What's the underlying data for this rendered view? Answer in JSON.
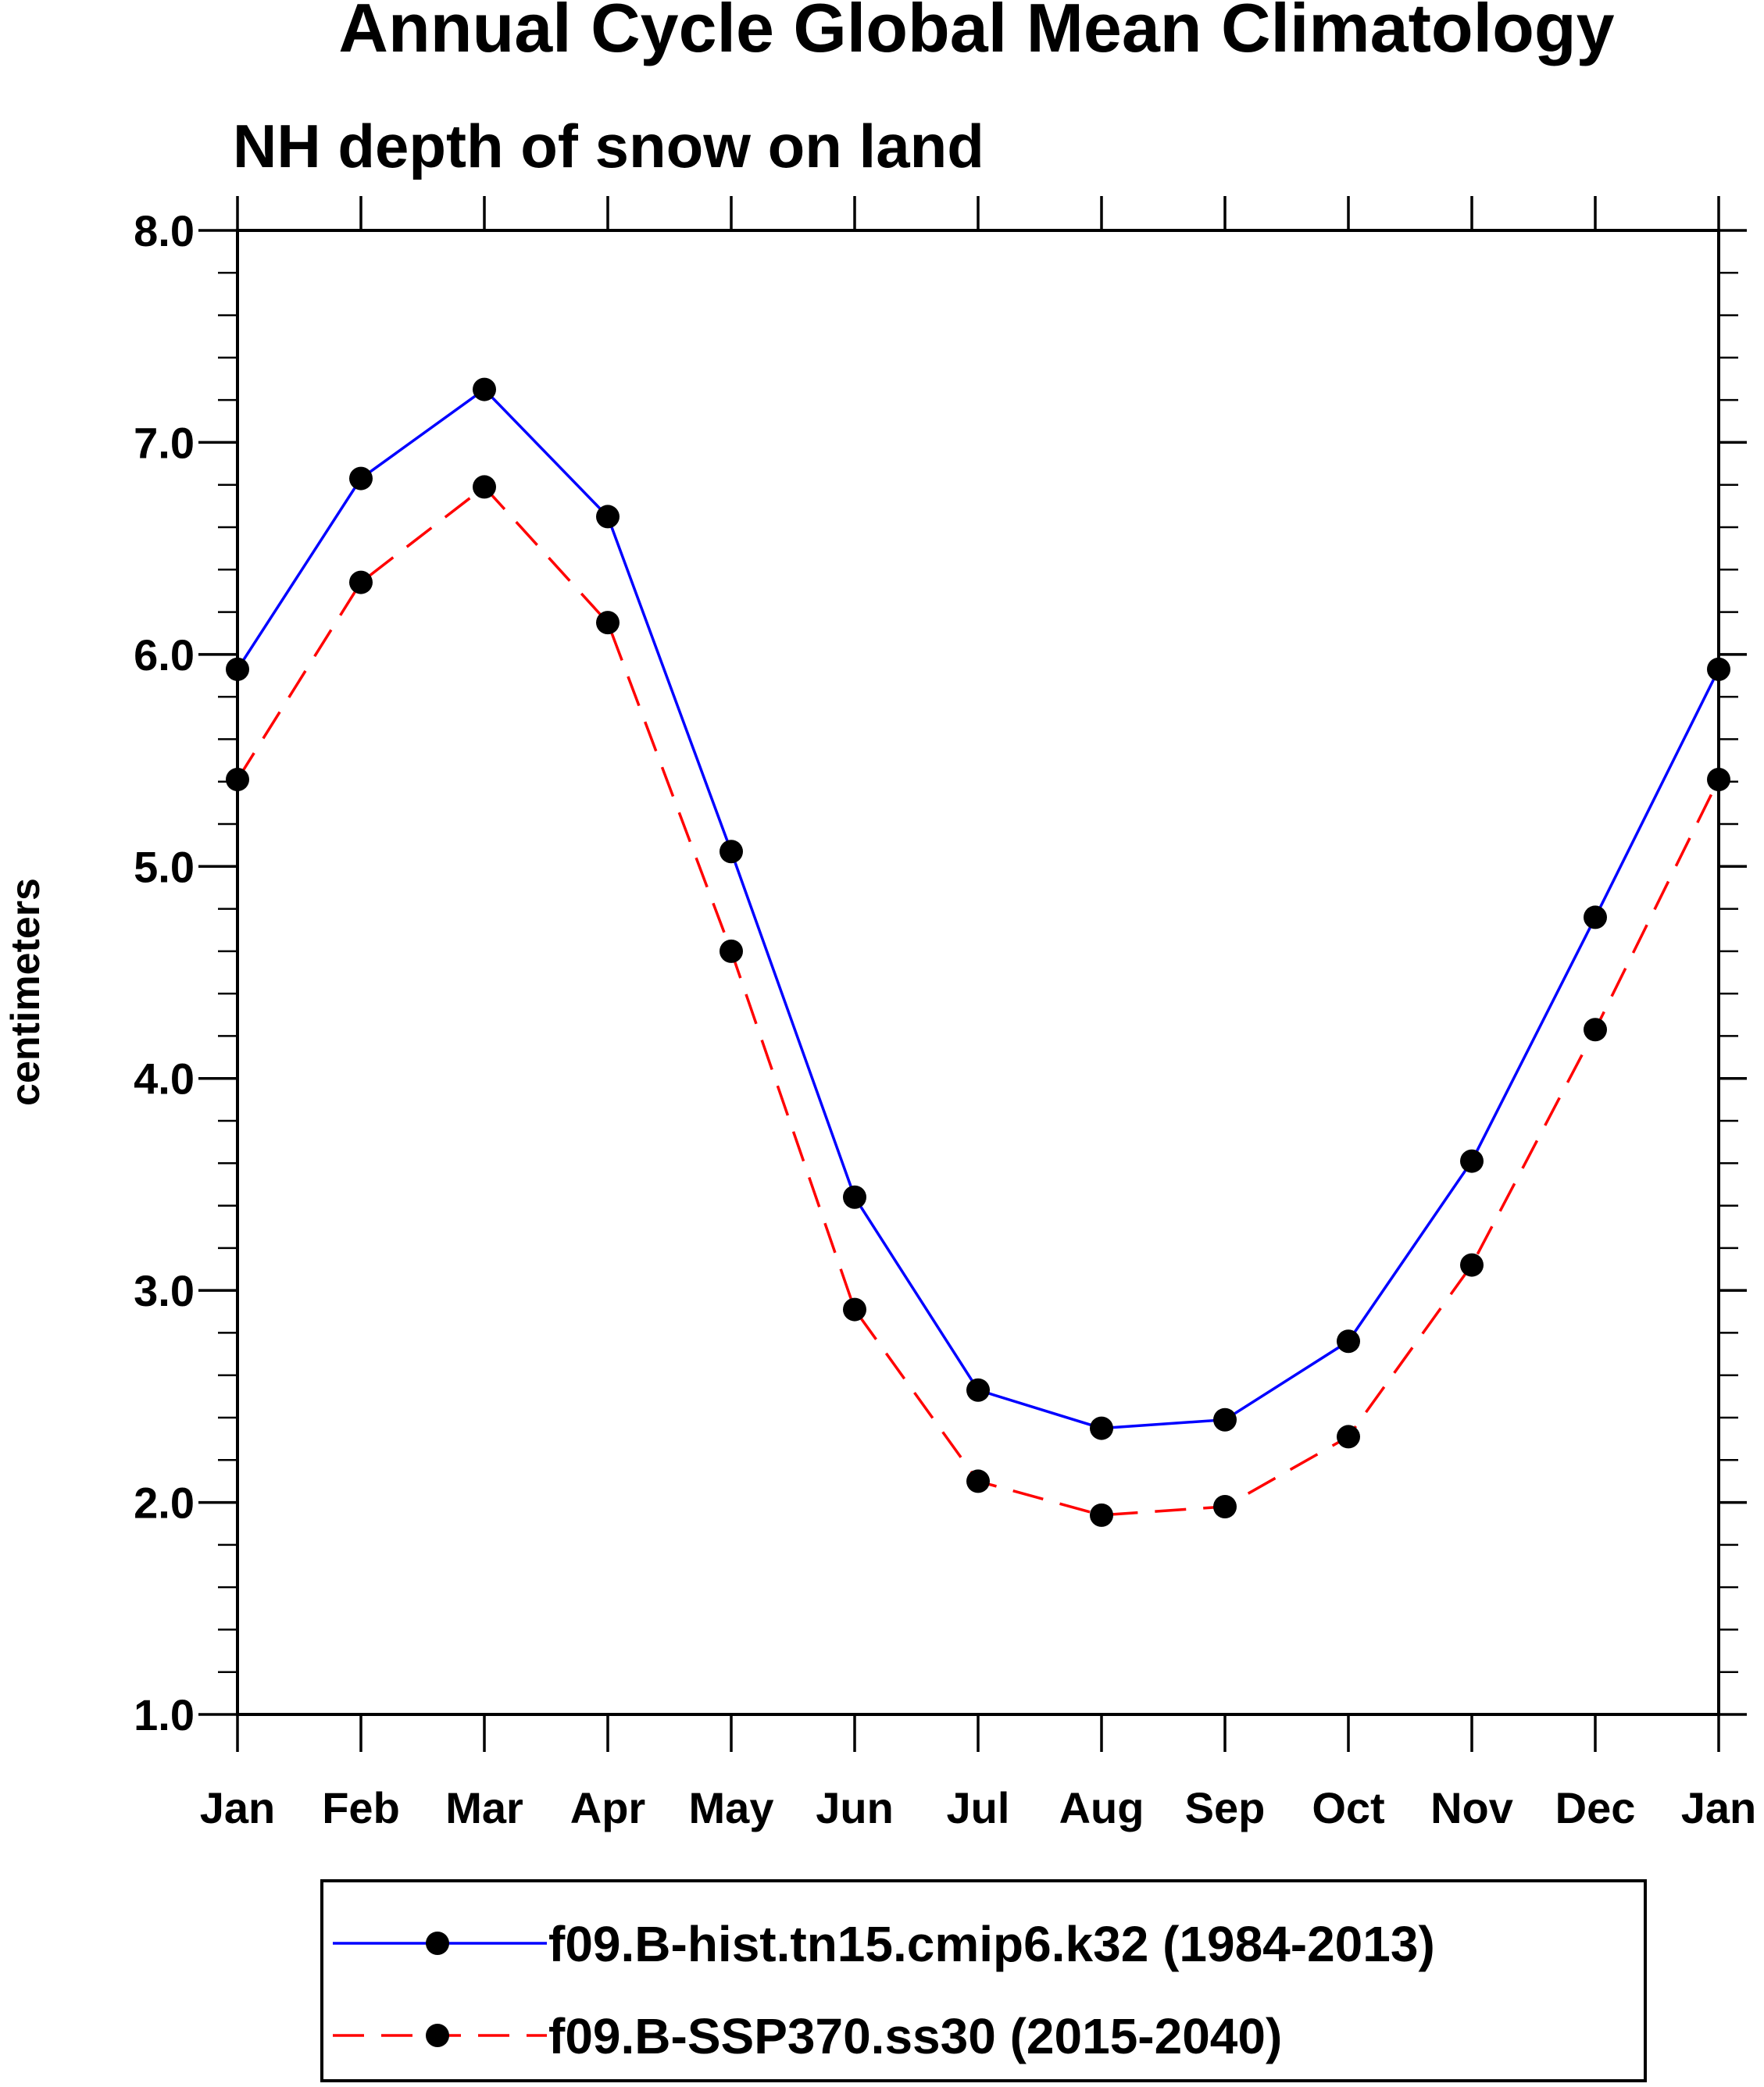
{
  "title": "Annual Cycle Global Mean Climatology",
  "chart_data": {
    "type": "line",
    "title": "Annual Cycle Global Mean Climatology",
    "subtitle": "NH depth of snow on land",
    "xlabel": "",
    "ylabel": "centimeters",
    "categories": [
      "Jan",
      "Feb",
      "Mar",
      "Apr",
      "May",
      "Jun",
      "Jul",
      "Aug",
      "Sep",
      "Oct",
      "Nov",
      "Dec",
      "Jan"
    ],
    "ylim": [
      1.0,
      8.0
    ],
    "yticks": [
      "1.0",
      "2.0",
      "3.0",
      "4.0",
      "5.0",
      "6.0",
      "7.0",
      "8.0"
    ],
    "ytick_values": [
      1,
      2,
      3,
      4,
      5,
      6,
      7,
      8
    ],
    "yminor_step": 0.2,
    "grid": false,
    "legend_position": "bottom",
    "series": [
      {
        "name": "f09.B-hist.tn15.cmip6.k32 (1984-2013)",
        "color": "#0000ff",
        "line_style": "solid",
        "marker": "filled-circle",
        "marker_color": "#000000",
        "values": [
          5.93,
          6.83,
          7.25,
          6.65,
          5.07,
          3.44,
          2.53,
          2.35,
          2.39,
          2.76,
          3.61,
          4.76,
          5.93
        ]
      },
      {
        "name": "f09.B-SSP370.ss30 (2015-2040)",
        "color": "#ff0000",
        "line_style": "dashed",
        "marker": "filled-circle",
        "marker_color": "#000000",
        "values": [
          5.41,
          6.34,
          6.79,
          6.15,
          4.6,
          2.91,
          2.1,
          1.94,
          1.98,
          2.31,
          3.12,
          4.23,
          5.41
        ]
      }
    ]
  }
}
